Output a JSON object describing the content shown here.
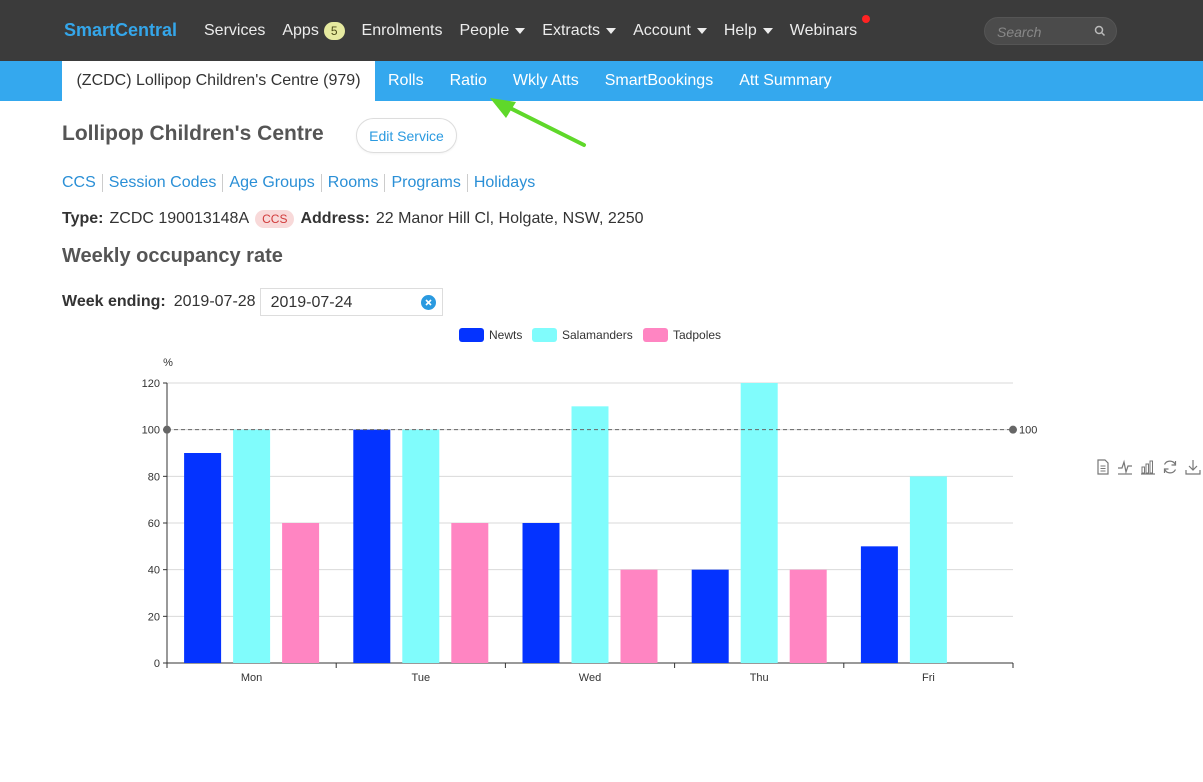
{
  "header": {
    "brand": "SmartCentral",
    "nav": [
      {
        "label": "Services"
      },
      {
        "label": "Apps",
        "badge": "5"
      },
      {
        "label": "Enrolments"
      },
      {
        "label": "People",
        "dropdown": true
      },
      {
        "label": "Extracts",
        "dropdown": true
      },
      {
        "label": "Account",
        "dropdown": true
      },
      {
        "label": "Help",
        "dropdown": true
      },
      {
        "label": "Webinars"
      }
    ],
    "search_placeholder": "Search"
  },
  "subnav": {
    "active": "(ZCDC) Lollipop Children's Centre (979)",
    "items": [
      "Rolls",
      "Ratio",
      "Wkly Atts",
      "SmartBookings",
      "Att Summary"
    ]
  },
  "page": {
    "title": "Lollipop Children's Centre",
    "edit_button": "Edit Service",
    "links": [
      "CCS",
      "Session Codes",
      "Age Groups",
      "Rooms",
      "Programs",
      "Holidays"
    ],
    "type_label": "Type:",
    "type_value": "ZCDC 190013148A",
    "type_badge": "CCS",
    "address_label": "Address:",
    "address_value": "22 Manor Hill Cl, Holgate, NSW, 2250",
    "section_title": "Weekly occupancy rate",
    "week_label": "Week ending:",
    "week_value": "2019-07-28",
    "date_input_value": "2019-07-24"
  },
  "colors": {
    "brand": "#34a6ea",
    "topbar": "#3b3b3b",
    "subbar": "#34a8ee",
    "newts": "#0433ff",
    "salamanders": "#80fcfc",
    "tadpoles": "#ff85c2"
  },
  "chart_data": {
    "type": "bar",
    "title": "",
    "ylabel": "%",
    "xlabel": "",
    "categories": [
      "Mon",
      "Tue",
      "Wed",
      "Thu",
      "Fri"
    ],
    "series": [
      {
        "name": "Newts",
        "values": [
          90,
          100,
          60,
          40,
          50
        ]
      },
      {
        "name": "Salamanders",
        "values": [
          100,
          100,
          110,
          120,
          80
        ]
      },
      {
        "name": "Tadpoles",
        "values": [
          60,
          60,
          40,
          40,
          null
        ]
      }
    ],
    "ylim": [
      0,
      120
    ],
    "yticks": [
      0,
      20,
      40,
      60,
      80,
      100,
      120
    ],
    "reference_line": {
      "value": 100,
      "label": "100"
    },
    "legend_position": "top-center",
    "grid": true
  }
}
